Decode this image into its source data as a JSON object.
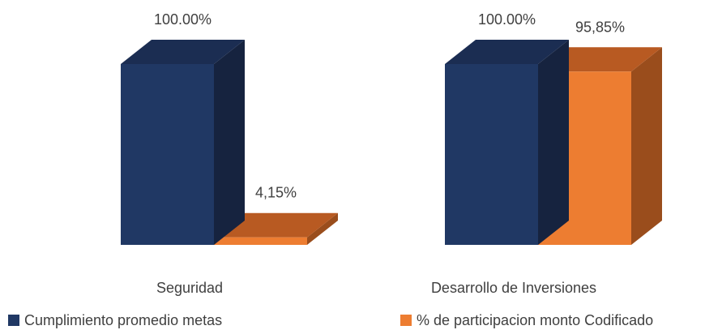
{
  "chart_data": {
    "type": "bar",
    "style": "3d-column",
    "categories": [
      "Seguridad",
      "Desarrollo de Inversiones"
    ],
    "series": [
      {
        "name": "Cumplimiento promedio metas",
        "values": [
          100.0,
          100.0
        ],
        "labels": [
          "100.00%",
          "100.00%"
        ],
        "color": "#203864",
        "side_color": "#16233f",
        "top_color": "#1b2d52"
      },
      {
        "name": "% de participacion monto Codificado",
        "values": [
          4.15,
          95.85
        ],
        "labels": [
          "4,15%",
          "95,85%"
        ],
        "color": "#ed7d31",
        "side_color": "#9a4d1c",
        "top_color": "#b85a22"
      }
    ],
    "ylim": [
      0,
      100
    ],
    "unit": "%",
    "grid": false,
    "legend": "bottom"
  }
}
